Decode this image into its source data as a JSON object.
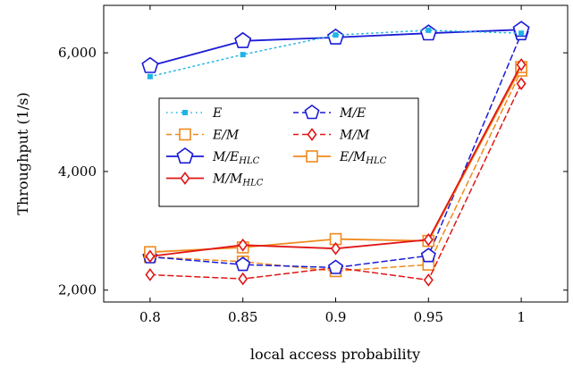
{
  "chart_data": {
    "type": "line",
    "xlabel": "local access probability",
    "ylabel": "Throughput (1/s)",
    "x": [
      0.8,
      0.85,
      0.9,
      0.95,
      1
    ],
    "x_tick_labels": [
      "0.8",
      "0.85",
      "0.9",
      "0.95",
      "1"
    ],
    "y_ticks": [
      2000,
      4000,
      6000
    ],
    "y_tick_labels": [
      "2,000",
      "4,000",
      "6,000"
    ],
    "xlim": [
      0.775,
      1.025
    ],
    "ylim": [
      1800,
      6800
    ],
    "grid": false,
    "legend_position": "center-left",
    "series": [
      {
        "name": "E",
        "legend_main": "E",
        "legend_sub": "",
        "color": "#1fb4e6",
        "dash": "dotted",
        "marker": "square-filled",
        "values": [
          5600,
          5970,
          6300,
          6380,
          6330
        ]
      },
      {
        "name": "M/E",
        "legend_main": "M/E",
        "legend_sub": "",
        "color": "#1a1ad6",
        "dash": "dashed",
        "marker": "pentagon",
        "values": [
          2560,
          2430,
          2380,
          2580,
          6320
        ]
      },
      {
        "name": "E/M",
        "legend_main": "E/M",
        "legend_sub": "",
        "color": "#f08a1c",
        "dash": "dashed",
        "marker": "square",
        "values": [
          2560,
          2480,
          2320,
          2430,
          5700
        ]
      },
      {
        "name": "M/M",
        "legend_main": "M/M",
        "legend_sub": "",
        "color": "#e01616",
        "dash": "dashed",
        "marker": "diamond",
        "values": [
          2260,
          2190,
          2380,
          2170,
          5480
        ]
      },
      {
        "name": "M/E_HLC",
        "legend_main": "M/E",
        "legend_sub": "HLC",
        "color": "#1a1ad6",
        "dash": "solid",
        "marker": "pentagon",
        "values": [
          5780,
          6200,
          6260,
          6330,
          6390
        ]
      },
      {
        "name": "E/M_HLC",
        "legend_main": "E/M",
        "legend_sub": "HLC",
        "color": "#f08a1c",
        "dash": "solid",
        "marker": "square",
        "values": [
          2640,
          2720,
          2860,
          2830,
          5760
        ]
      },
      {
        "name": "M/M_HLC",
        "legend_main": "M/M",
        "legend_sub": "HLC",
        "color": "#e01616",
        "dash": "solid",
        "marker": "diamond",
        "values": [
          2570,
          2760,
          2700,
          2850,
          5800
        ]
      }
    ],
    "legend_order": [
      0,
      1,
      2,
      3,
      4,
      5,
      6
    ]
  }
}
